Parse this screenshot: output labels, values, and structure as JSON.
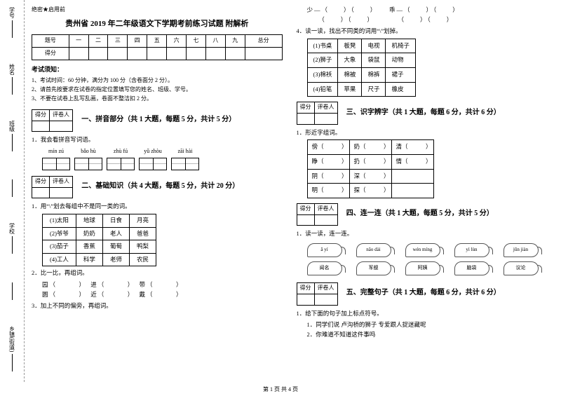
{
  "secret": "绝密★启用前",
  "title": "贵州省 2019 年二年级语文下学期考前练习试题 附解析",
  "score_headers": [
    "题号",
    "一",
    "二",
    "三",
    "四",
    "五",
    "六",
    "七",
    "八",
    "九",
    "总分"
  ],
  "score_row_label": "得分",
  "notice_title": "考试须知：",
  "notices": [
    "1、考试时间：60 分钟，满分为 100 分（含卷面分 2 分）。",
    "2、请首先按要求在试卷的指定位置填写您的姓名、班级、学号。",
    "3、不要在试卷上乱写乱画，卷面不整洁扣 2 分。"
  ],
  "score_box": {
    "c1": "得分",
    "c2": "评卷人"
  },
  "sec1": {
    "title": "一、拼音部分（共 1 大题，每题 5 分，共计 5 分）",
    "q1": "1．我会看拼音写词语。"
  },
  "pinyin": [
    "mín zú",
    "bǎo hù",
    "zhù fú",
    "yǔ zhòu",
    "zāi hài"
  ],
  "sec2": {
    "title": "二、基础知识（共 4 大题，每题 5 分，共计 20 分）",
    "q1": "1．用“\\”划去每组中不是同一类的词。"
  },
  "word_rows": [
    [
      "(1)太阳",
      "地球",
      "日食",
      "月亮"
    ],
    [
      "(2)爷爷",
      "奶奶",
      "老人",
      "爸爸"
    ],
    [
      "(3)茄子",
      "香蕉",
      "葡萄",
      "鸭梨"
    ],
    [
      "(4)工人",
      "科学",
      "老师",
      "农民"
    ]
  ],
  "q2_2": "2．比一比，再组词。",
  "pair_lines": [
    "园（　　　）　进（　　　）　带（　　　）",
    "圆（　　　）　近（　　　）　戴（　　　）"
  ],
  "q2_3": "3．加上不同的偏旁，再组词。",
  "right_top_lines": [
    "少—（　　）（　　）　　乖—（　　）（　　）",
    "　　（　　）（　　）　　　　（　　）（　　）"
  ],
  "q2_4": "4．读一读，找出不同类的词用“\\”划掉。",
  "group_rows": [
    [
      "(1)书桌",
      "板凳",
      "电视",
      "机椅子"
    ],
    [
      "(2)狮子",
      "大象",
      "袋鼠",
      "动物"
    ],
    [
      "(3)棉袄",
      "棉被",
      "棉裤",
      "裙子"
    ],
    [
      "(4)铅笔",
      "苹果",
      "尺子",
      "橡皮"
    ]
  ],
  "sec3": {
    "title": "三、识字辨字（共 1 大题，每题 6 分，共计 6 分）",
    "q1": "1．形近字组词。"
  },
  "char_rows": [
    [
      "傍（　　　）",
      "奶（　　　）",
      "清（　　　）"
    ],
    [
      "睁（　　　）",
      "扔（　　　）",
      "情（　　　）"
    ],
    [
      "阴（　　　）",
      "深（　　　）",
      ""
    ],
    [
      "明（　　　）",
      "探（　　　）",
      ""
    ]
  ],
  "sec4": {
    "title": "四、连一连（共 1 大题，每题 5 分，共计 5 分）",
    "q1": "1．读一读，连一连。"
  },
  "leaves_top": [
    "ā yí",
    "nǎo dài",
    "wén míng",
    "yì lùn",
    "jūn jiàn"
  ],
  "leaves_bot": [
    "闻名",
    "军舰",
    "阿姨",
    "脑袋",
    "议论"
  ],
  "sec5": {
    "title": "五、完整句子（共 1 大题，每题 6 分，共计 6 分）",
    "q1": "1．给下面的句子加上标点符号。"
  },
  "sent_lines": [
    "1．同学们说 卢沟桥的狮子 专爱跟人捉迷藏呢",
    "2．你难道不知道这件事吗"
  ],
  "binding": [
    "学号",
    "姓名",
    "班级",
    "",
    "学校",
    "",
    "乡镇(街道)"
  ],
  "vlab": [
    "答",
    "",
    "不",
    "",
    "内",
    "",
    "线",
    "",
    "封",
    "",
    "密"
  ],
  "vtop": "题",
  "footer": "第 1 页 共 4 页"
}
